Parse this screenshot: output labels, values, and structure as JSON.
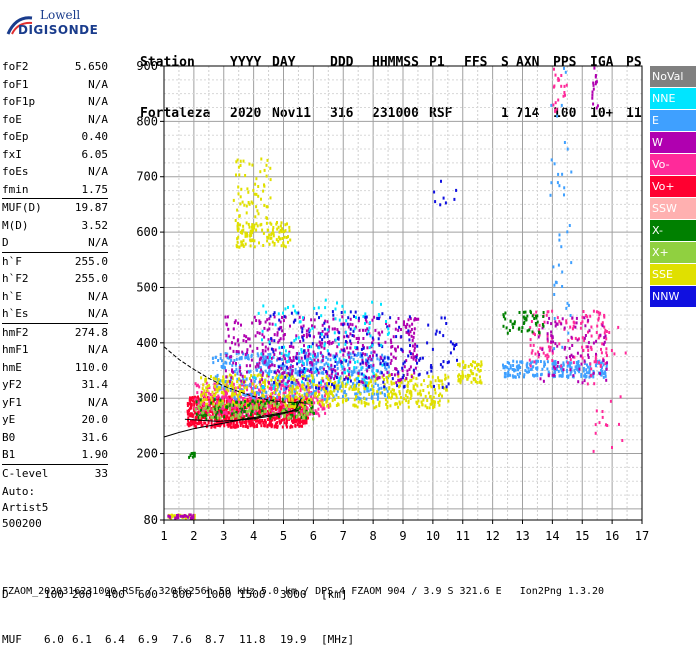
{
  "logo": {
    "line1": "Lowell",
    "line2": "DIGISONDE"
  },
  "header": {
    "labels": [
      "Station",
      "YYYY",
      "DAY",
      "DDD",
      "HHMMSS",
      "P1",
      "FFS",
      "S",
      "AXN",
      "PPS",
      "IGA",
      "PS"
    ],
    "values": [
      "Fortaleza",
      "2020",
      "Nov11",
      "316",
      "231000",
      "RSF",
      "1",
      "714",
      "100",
      "10+",
      "11"
    ]
  },
  "params": [
    [
      {
        "name": "foF2",
        "value": "5.650"
      },
      {
        "name": "foF1",
        "value": "N/A"
      },
      {
        "name": "foF1p",
        "value": "N/A"
      },
      {
        "name": "foE",
        "value": "N/A"
      },
      {
        "name": "foEp",
        "value": "0.40"
      },
      {
        "name": "fxI",
        "value": "6.05"
      },
      {
        "name": "foEs",
        "value": "N/A"
      },
      {
        "name": "fmin",
        "value": "1.75"
      }
    ],
    [
      {
        "name": "MUF(D)",
        "value": "19.87"
      },
      {
        "name": "M(D)",
        "value": "3.52"
      },
      {
        "name": "D",
        "value": "N/A"
      }
    ],
    [
      {
        "name": "h`F",
        "value": "255.0"
      },
      {
        "name": "h`F2",
        "value": "255.0"
      },
      {
        "name": "h`E",
        "value": "N/A"
      },
      {
        "name": "h`Es",
        "value": "N/A"
      }
    ],
    [
      {
        "name": "hmF2",
        "value": "274.8"
      },
      {
        "name": "hmF1",
        "value": "N/A"
      },
      {
        "name": "hmE",
        "value": "110.0"
      },
      {
        "name": "yF2",
        "value": "31.4"
      },
      {
        "name": "yF1",
        "value": "N/A"
      },
      {
        "name": "yE",
        "value": "20.0"
      },
      {
        "name": "B0",
        "value": "31.6"
      },
      {
        "name": "B1",
        "value": "1.90"
      }
    ],
    [
      {
        "name": "C-level",
        "value": "33"
      }
    ]
  ],
  "auto": {
    "line1": "Auto:",
    "line2": "Artist5",
    "line3": "500200"
  },
  "legend": [
    {
      "label": "NoVal",
      "color": "#808080"
    },
    {
      "label": "NNE",
      "color": "#00e5ff"
    },
    {
      "label": "E",
      "color": "#3fa0ff"
    },
    {
      "label": "W",
      "color": "#b000b0"
    },
    {
      "label": "Vo-",
      "color": "#ff2a9a"
    },
    {
      "label": "Vo+",
      "color": "#ff0030"
    },
    {
      "label": "SSW",
      "color": "#ffb0b0"
    },
    {
      "label": "X-",
      "color": "#008000"
    },
    {
      "label": "X+",
      "color": "#90d040"
    },
    {
      "label": "SSE",
      "color": "#e0e000"
    },
    {
      "label": "NNW",
      "color": "#1010e0"
    }
  ],
  "dmuf": {
    "d_label": "D",
    "d_values": [
      "100",
      "200",
      "400",
      "600",
      "800",
      "1000",
      "1500",
      "3000",
      "[km]"
    ],
    "muf_label": "MUF",
    "muf_values": [
      "6.0",
      "6.1",
      "6.4",
      "6.9",
      "7.6",
      "8.7",
      "11.8",
      "19.9",
      "[MHz]"
    ]
  },
  "footer": "FZAOM_2020316231000.RSF / 320fx256h 50 kHz 5.0 km / DPS-4 FZAOM 904 / 3.9 S 321.6 E   Ion2Png 1.3.20",
  "chart_data": {
    "type": "scatter",
    "xlim": [
      1,
      17
    ],
    "ylim": [
      80,
      900
    ],
    "x_ticks": [
      1,
      2,
      3,
      4,
      5,
      6,
      7,
      8,
      9,
      10,
      11,
      12,
      13,
      14,
      15,
      16,
      17
    ],
    "y_ticks": [
      80,
      200,
      300,
      400,
      500,
      600,
      700,
      800,
      900
    ],
    "x_minor_step": 0.5,
    "y_minor_step": 25,
    "grid": true,
    "legend_placement": "right",
    "profile_curve": [
      [
        1.0,
        230
      ],
      [
        1.5,
        238
      ],
      [
        2.0,
        245
      ],
      [
        2.5,
        250
      ],
      [
        3.0,
        255
      ],
      [
        3.5,
        260
      ],
      [
        4.0,
        263
      ],
      [
        4.5,
        267
      ],
      [
        5.0,
        272
      ],
      [
        5.4,
        280
      ],
      [
        5.6,
        300
      ]
    ],
    "upper_curve": [
      [
        1.0,
        393
      ],
      [
        1.5,
        370
      ],
      [
        2.0,
        352
      ],
      [
        2.5,
        336
      ],
      [
        3.0,
        322
      ],
      [
        3.5,
        312
      ],
      [
        4.0,
        303
      ],
      [
        4.5,
        297
      ],
      [
        5.0,
        293
      ],
      [
        5.5,
        292
      ],
      [
        5.8,
        291
      ]
    ],
    "trace_curve": [
      [
        1.7,
        262
      ],
      [
        2.2,
        260
      ],
      [
        2.8,
        258
      ],
      [
        3.4,
        260
      ],
      [
        4.0,
        265
      ],
      [
        4.6,
        270
      ],
      [
        5.0,
        274
      ],
      [
        5.5,
        278
      ]
    ],
    "clusters": [
      {
        "color": "#ff0030",
        "x": [
          1.75,
          5.8
        ],
        "y": [
          250,
          305
        ],
        "n": 900
      },
      {
        "color": "#ff2a9a",
        "x": [
          2.0,
          6.5
        ],
        "y": [
          270,
          330
        ],
        "n": 400
      },
      {
        "color": "#3fa0ff",
        "x": [
          2.6,
          8.5
        ],
        "y": [
          300,
          385
        ],
        "n": 550
      },
      {
        "color": "#e0e000",
        "x": [
          2.2,
          10.5
        ],
        "y": [
          285,
          345
        ],
        "n": 550
      },
      {
        "color": "#b000b0",
        "x": [
          3.0,
          9.5
        ],
        "y": [
          330,
          450
        ],
        "n": 450
      },
      {
        "color": "#1010e0",
        "x": [
          4.5,
          10.8
        ],
        "y": [
          320,
          460
        ],
        "n": 200
      },
      {
        "color": "#008000",
        "x": [
          2.0,
          6.0
        ],
        "y": [
          265,
          300
        ],
        "n": 120
      },
      {
        "color": "#90d040",
        "x": [
          2.0,
          6.0
        ],
        "y": [
          265,
          295
        ],
        "n": 100
      },
      {
        "color": "#00e5ff",
        "x": [
          4.0,
          8.5
        ],
        "y": [
          320,
          480
        ],
        "n": 120
      },
      {
        "color": "#e0e000",
        "x": [
          3.4,
          5.2
        ],
        "y": [
          575,
          620
        ],
        "n": 120
      },
      {
        "color": "#e0e000",
        "x": [
          3.3,
          4.6
        ],
        "y": [
          620,
          735
        ],
        "n": 60
      },
      {
        "color": "#3fa0ff",
        "x": [
          12.3,
          15.8
        ],
        "y": [
          340,
          370
        ],
        "n": 220
      },
      {
        "color": "#ff2a9a",
        "x": [
          13.2,
          15.8
        ],
        "y": [
          360,
          460
        ],
        "n": 120
      },
      {
        "color": "#b000b0",
        "x": [
          13.5,
          15.8
        ],
        "y": [
          330,
          450
        ],
        "n": 90
      },
      {
        "color": "#008000",
        "x": [
          12.3,
          13.7
        ],
        "y": [
          420,
          460
        ],
        "n": 50
      },
      {
        "color": "#3fa0ff",
        "x": [
          13.9,
          14.6
        ],
        "y": [
          380,
          900
        ],
        "n": 40
      },
      {
        "color": "#ff2a9a",
        "x": [
          14.0,
          14.5
        ],
        "y": [
          820,
          900
        ],
        "n": 20
      },
      {
        "color": "#b000b0",
        "x": [
          15.3,
          15.5
        ],
        "y": [
          820,
          900
        ],
        "n": 15
      },
      {
        "color": "#e0e000",
        "x": [
          10.8,
          11.6
        ],
        "y": [
          330,
          370
        ],
        "n": 60
      },
      {
        "color": "#1010e0",
        "x": [
          9.8,
          10.9
        ],
        "y": [
          640,
          700
        ],
        "n": 8
      },
      {
        "color": "#ff2a9a",
        "x": [
          15.0,
          16.5
        ],
        "y": [
          200,
          460
        ],
        "n": 30
      },
      {
        "color": "#e0e000",
        "x": [
          1.1,
          2.0
        ],
        "y": [
          84,
          92
        ],
        "n": 40
      },
      {
        "color": "#b000b0",
        "x": [
          1.1,
          2.0
        ],
        "y": [
          84,
          92
        ],
        "n": 25
      },
      {
        "color": "#008000",
        "x": [
          1.8,
          2.0
        ],
        "y": [
          195,
          205
        ],
        "n": 10
      }
    ]
  }
}
